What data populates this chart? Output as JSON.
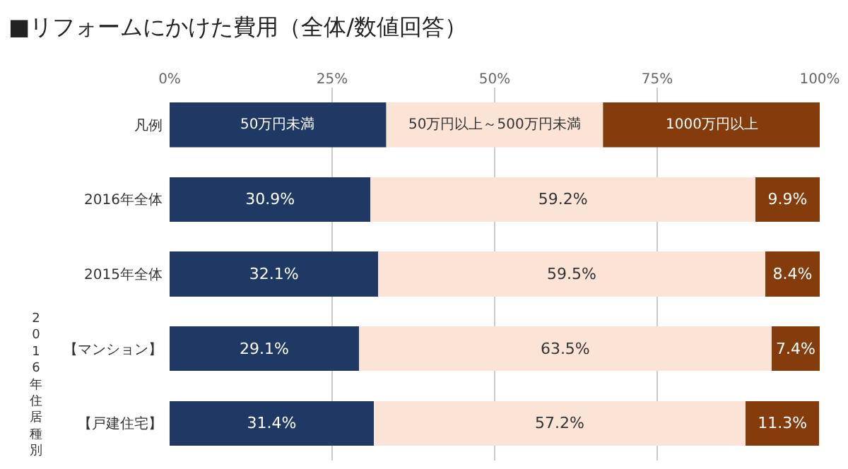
{
  "chart_data": {
    "type": "bar",
    "orientation": "horizontal",
    "stacked": true,
    "title": "■リフォームにかけた費用（全体/数値回答）",
    "legend_title": "凡例",
    "categories": [
      "2016年全体",
      "2015年全体",
      "【マンション】",
      "【戸建住宅】"
    ],
    "series": [
      {
        "name": "50万円未満",
        "color": "#1f3864",
        "values": [
          30.9,
          32.1,
          29.1,
          31.4
        ],
        "value_labels": [
          "30.9%",
          "32.1%",
          "29.1%",
          "31.4%"
        ]
      },
      {
        "name": "50万円以上～500万円未満",
        "color": "#fbe3d6",
        "values": [
          59.2,
          59.5,
          63.5,
          57.2
        ],
        "value_labels": [
          "59.2%",
          "59.5%",
          "63.5%",
          "57.2%"
        ]
      },
      {
        "name": "1000万円以上",
        "color": "#843c0c",
        "values": [
          9.9,
          8.4,
          7.4,
          11.3
        ],
        "value_labels": [
          "9.9%",
          "8.4%",
          "7.4%",
          "11.3%"
        ]
      }
    ],
    "xlim": [
      0,
      100
    ],
    "xticks": [
      {
        "value": 0,
        "label": "0%"
      },
      {
        "value": 25,
        "label": "25%"
      },
      {
        "value": 50,
        "label": "50%"
      },
      {
        "value": 75,
        "label": "75%"
      },
      {
        "value": 100,
        "label": "100%"
      }
    ],
    "grid": "x",
    "legend": "top",
    "annotations": [
      "2016年住居種別"
    ]
  }
}
